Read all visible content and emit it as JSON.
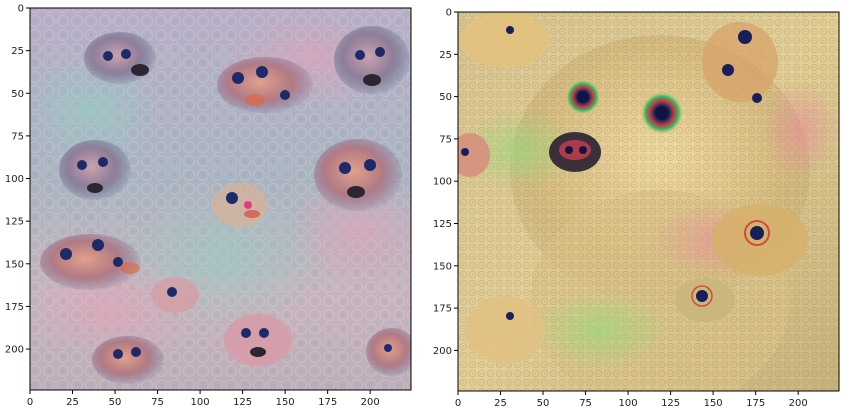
{
  "panels": [
    {
      "name": "left",
      "description_icon": "deepdream-image-icon",
      "palette": {
        "base": "#b9b4c8",
        "tint_a": "#8fb2b5",
        "tint_b": "#d8a6b3",
        "eye": "#1d2a6a",
        "accent": "#e2663a"
      },
      "x_ticks": [
        0,
        25,
        50,
        75,
        100,
        125,
        150,
        175,
        200
      ],
      "y_ticks": [
        0,
        25,
        50,
        75,
        100,
        125,
        150,
        175,
        200
      ],
      "x_tick_labels": [
        "0",
        "25",
        "50",
        "75",
        "100",
        "125",
        "150",
        "175",
        "200"
      ],
      "y_tick_labels": [
        "0",
        "25",
        "50",
        "75",
        "100",
        "125",
        "150",
        "175",
        "200"
      ]
    },
    {
      "name": "right",
      "description_icon": "deepdream-image-icon",
      "palette": {
        "base": "#d6c08a",
        "tint_a": "#e8d29a",
        "tint_b": "#b8a36a",
        "eye": "#1a1f5c",
        "accent": "#d24a3a"
      },
      "x_ticks": [
        0,
        25,
        50,
        75,
        100,
        125,
        150,
        175,
        200
      ],
      "y_ticks": [
        0,
        25,
        50,
        75,
        100,
        125,
        150,
        175,
        200
      ],
      "x_tick_labels": [
        "0",
        "25",
        "50",
        "75",
        "100",
        "125",
        "150",
        "175",
        "200"
      ],
      "y_tick_labels": [
        "0",
        "25",
        "50",
        "75",
        "100",
        "125",
        "150",
        "175",
        "200"
      ]
    }
  ],
  "axis_extent": [
    0,
    224
  ]
}
